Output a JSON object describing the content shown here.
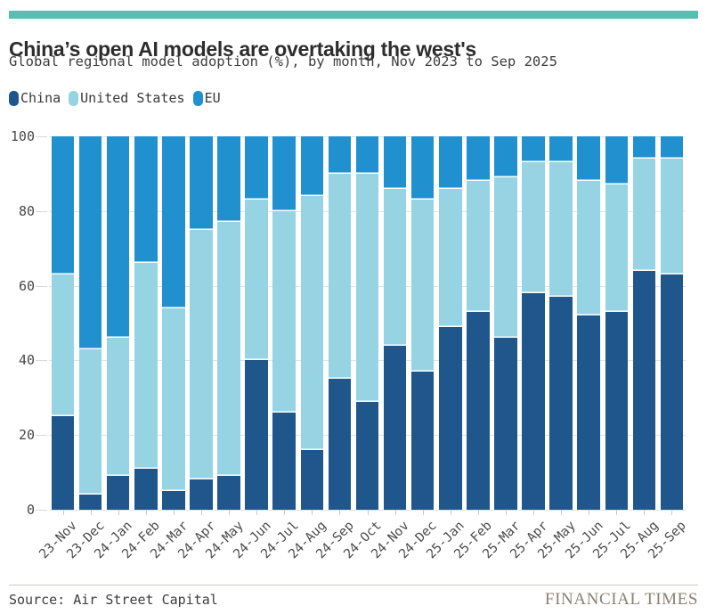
{
  "page": {
    "accent_bar_color": "#55bfb2",
    "background_color": "#ffffff"
  },
  "header": {
    "title": "China’s open AI models are overtaking the west's",
    "subtitle": "Global regional model adoption (%), by month, Nov 2023 to Sep 2025"
  },
  "legend": [
    {
      "label": "China",
      "color": "#1f568c"
    },
    {
      "label": "United States",
      "color": "#97d4e3"
    },
    {
      "label": "EU",
      "color": "#2190ce"
    }
  ],
  "chart_data": {
    "type": "bar",
    "stacked": true,
    "title": "China’s open AI models are overtaking the west's",
    "subtitle": "Global regional model adoption (%), by month, Nov 2023 to Sep 2025",
    "xlabel": "",
    "ylabel": "",
    "ylim": [
      0,
      100
    ],
    "yticks": [
      0,
      20,
      40,
      60,
      80,
      100
    ],
    "grid": true,
    "legend_position": "top-left",
    "categories": [
      "23-Nov",
      "23-Dec",
      "24-Jan",
      "24-Feb",
      "24-Mar",
      "24-Apr",
      "24-May",
      "24-Jun",
      "24-Jul",
      "24-Aug",
      "24-Sep",
      "24-Oct",
      "24-Nov",
      "24-Dec",
      "25-Jan",
      "25-Feb",
      "25-Mar",
      "25-Apr",
      "25-May",
      "25-Jun",
      "25-Jul",
      "25-Aug",
      "25-Sep"
    ],
    "series": [
      {
        "name": "China",
        "color": "#1f568c",
        "values": [
          25,
          4,
          9,
          11,
          5,
          8,
          9,
          40,
          26,
          16,
          35,
          29,
          44,
          37,
          49,
          53,
          46,
          58,
          57,
          52,
          53,
          64,
          63
        ]
      },
      {
        "name": "United States",
        "color": "#97d4e3",
        "values": [
          38,
          39,
          37,
          55,
          49,
          67,
          68,
          43,
          54,
          68,
          55,
          61,
          42,
          46,
          37,
          35,
          43,
          35,
          36,
          36,
          34,
          30,
          31
        ]
      },
      {
        "name": "EU",
        "color": "#2190ce",
        "values": [
          37,
          57,
          54,
          34,
          46,
          25,
          23,
          17,
          20,
          16,
          10,
          10,
          14,
          17,
          14,
          12,
          11,
          7,
          7,
          12,
          13,
          6,
          6
        ]
      }
    ]
  },
  "footer": {
    "source": "Source: Air Street Capital",
    "brand": "FINANCIAL TIMES"
  }
}
